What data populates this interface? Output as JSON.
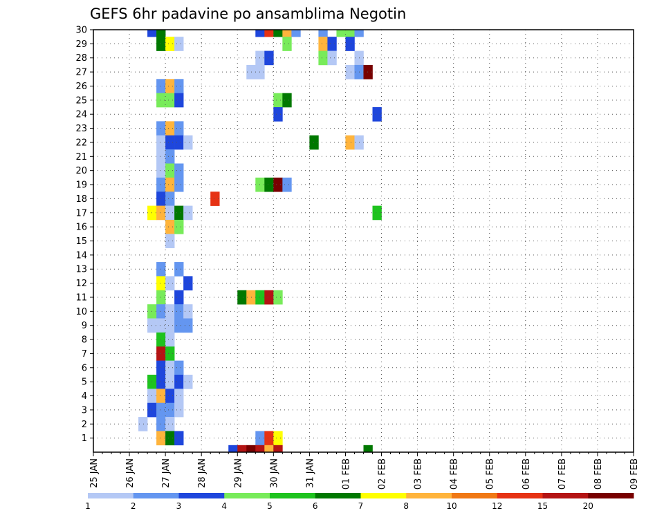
{
  "chart_data": {
    "type": "heatmap",
    "title": "GEFS 6hr padavine po ansamblima Negotin",
    "xlabel": "",
    "ylabel": "",
    "x_tick_labels": [
      "25 JAN",
      "26 JAN",
      "27 JAN",
      "28 JAN",
      "29 JAN",
      "30 JAN",
      "31 JAN",
      "01 FEB",
      "02 FEB",
      "03 FEB",
      "04 FEB",
      "05 FEB",
      "06 FEB",
      "07 FEB",
      "08 FEB",
      "09 FEB"
    ],
    "x_range_days": [
      0,
      15
    ],
    "time_step_hours": 6,
    "y_tick_labels": [
      "1",
      "2",
      "3",
      "4",
      "5",
      "6",
      "7",
      "8",
      "9",
      "10",
      "11",
      "12",
      "13",
      "14",
      "15",
      "16",
      "17",
      "18",
      "19",
      "20",
      "21",
      "22",
      "23",
      "24",
      "25",
      "26",
      "27",
      "28",
      "29",
      "30"
    ],
    "y_range": [
      0,
      30
    ],
    "grid": "dotted",
    "colorbar": {
      "labels": [
        "1",
        "2",
        "3",
        "4",
        "5",
        "6",
        "7",
        "8",
        "10",
        "12",
        "15",
        "20"
      ],
      "colors": [
        "#b4c8f5",
        "#6496f0",
        "#1e46dc",
        "#78eb5a",
        "#1ec31e",
        "#007800",
        "#ffff00",
        "#ffb43c",
        "#f07814",
        "#e63214",
        "#b41414",
        "#780000"
      ]
    },
    "cells": [
      [
        30,
        [
          [
            6,
            2
          ],
          [
            7,
            5
          ],
          [
            18,
            2
          ],
          [
            19,
            9
          ],
          [
            20,
            5
          ],
          [
            21,
            7
          ],
          [
            22,
            1
          ],
          [
            25,
            1
          ],
          [
            27,
            3
          ],
          [
            28,
            3
          ],
          [
            29,
            1
          ]
        ]
      ],
      [
        29,
        [
          [
            7,
            5
          ],
          [
            8,
            6
          ],
          [
            9,
            0
          ],
          [
            21,
            3
          ],
          [
            25,
            7
          ],
          [
            26,
            2
          ],
          [
            28,
            2
          ]
        ]
      ],
      [
        28,
        [
          [
            18,
            0
          ],
          [
            19,
            2
          ],
          [
            25,
            3
          ],
          [
            26,
            0
          ],
          [
            29,
            0
          ]
        ]
      ],
      [
        27,
        [
          [
            17,
            0
          ],
          [
            18,
            0
          ],
          [
            28,
            0
          ],
          [
            29,
            1
          ],
          [
            30,
            11
          ]
        ]
      ],
      [
        26,
        [
          [
            7,
            1
          ],
          [
            8,
            7
          ],
          [
            9,
            1
          ]
        ]
      ],
      [
        25,
        [
          [
            7,
            3
          ],
          [
            8,
            3
          ],
          [
            9,
            2
          ],
          [
            20,
            3
          ],
          [
            21,
            5
          ]
        ]
      ],
      [
        24,
        [
          [
            20,
            2
          ],
          [
            31,
            2
          ]
        ]
      ],
      [
        23,
        [
          [
            7,
            1
          ],
          [
            8,
            7
          ],
          [
            9,
            1
          ]
        ]
      ],
      [
        22,
        [
          [
            7,
            0
          ],
          [
            8,
            2
          ],
          [
            9,
            2
          ],
          [
            10,
            0
          ],
          [
            24,
            5
          ],
          [
            28,
            7
          ],
          [
            29,
            0
          ]
        ]
      ],
      [
        21,
        [
          [
            7,
            0
          ],
          [
            8,
            1
          ]
        ]
      ],
      [
        20,
        [
          [
            7,
            0
          ],
          [
            8,
            3
          ],
          [
            9,
            1
          ]
        ]
      ],
      [
        19,
        [
          [
            7,
            1
          ],
          [
            8,
            7
          ],
          [
            9,
            1
          ],
          [
            18,
            3
          ],
          [
            19,
            5
          ],
          [
            20,
            11
          ],
          [
            21,
            1
          ]
        ]
      ],
      [
        18,
        [
          [
            7,
            2
          ],
          [
            8,
            1
          ],
          [
            13,
            9
          ]
        ]
      ],
      [
        17,
        [
          [
            6,
            6
          ],
          [
            7,
            7
          ],
          [
            8,
            0
          ],
          [
            9,
            5
          ],
          [
            10,
            0
          ],
          [
            31,
            4
          ]
        ]
      ],
      [
        16,
        [
          [
            8,
            7
          ],
          [
            9,
            3
          ]
        ]
      ],
      [
        15,
        [
          [
            8,
            0
          ]
        ]
      ],
      [
        14,
        []
      ],
      [
        13,
        [
          [
            7,
            1
          ],
          [
            9,
            1
          ]
        ]
      ],
      [
        12,
        [
          [
            7,
            6
          ],
          [
            8,
            0
          ],
          [
            10,
            2
          ]
        ]
      ],
      [
        11,
        [
          [
            7,
            3
          ],
          [
            9,
            2
          ],
          [
            16,
            5
          ],
          [
            17,
            7
          ],
          [
            18,
            4
          ],
          [
            19,
            10
          ],
          [
            20,
            3
          ]
        ]
      ],
      [
        10,
        [
          [
            6,
            3
          ],
          [
            7,
            1
          ],
          [
            8,
            0
          ],
          [
            9,
            1
          ],
          [
            10,
            0
          ]
        ]
      ],
      [
        9,
        [
          [
            6,
            0
          ],
          [
            7,
            0
          ],
          [
            8,
            0
          ],
          [
            9,
            1
          ],
          [
            10,
            1
          ]
        ]
      ],
      [
        8,
        [
          [
            7,
            4
          ],
          [
            8,
            0
          ]
        ]
      ],
      [
        7,
        [
          [
            7,
            10
          ],
          [
            8,
            4
          ]
        ]
      ],
      [
        6,
        [
          [
            7,
            2
          ],
          [
            8,
            0
          ],
          [
            9,
            1
          ]
        ]
      ],
      [
        5,
        [
          [
            6,
            4
          ],
          [
            7,
            2
          ],
          [
            8,
            0
          ],
          [
            9,
            2
          ],
          [
            10,
            0
          ]
        ]
      ],
      [
        4,
        [
          [
            6,
            0
          ],
          [
            7,
            7
          ],
          [
            8,
            2
          ],
          [
            9,
            0
          ]
        ]
      ],
      [
        3,
        [
          [
            6,
            2
          ],
          [
            7,
            1
          ],
          [
            8,
            1
          ],
          [
            9,
            0
          ]
        ]
      ],
      [
        2,
        [
          [
            5,
            0
          ],
          [
            7,
            1
          ],
          [
            8,
            0
          ]
        ]
      ],
      [
        1,
        [
          [
            7,
            7
          ],
          [
            8,
            5
          ],
          [
            9,
            2
          ],
          [
            18,
            1
          ],
          [
            19,
            9
          ],
          [
            20,
            6
          ]
        ]
      ],
      [
        0,
        [
          [
            15,
            2
          ],
          [
            16,
            10
          ],
          [
            17,
            11
          ],
          [
            18,
            10
          ],
          [
            19,
            7
          ],
          [
            20,
            10
          ],
          [
            30,
            5
          ]
        ]
      ]
    ]
  }
}
